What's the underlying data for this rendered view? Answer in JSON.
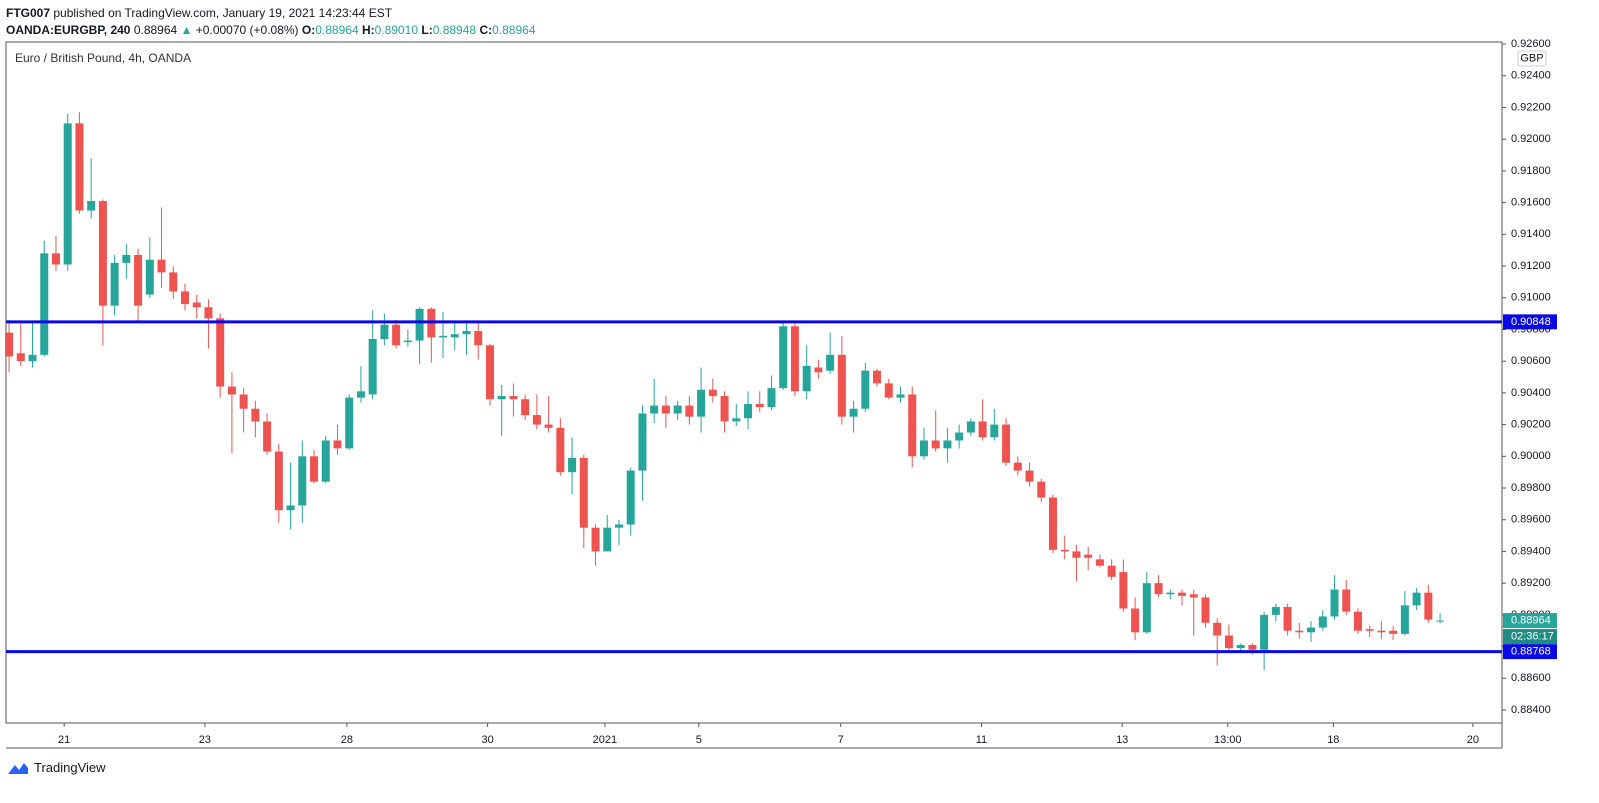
{
  "header": {
    "user": "FTG007",
    "published": "published on TradingView.com, January 19, 2021 14:23:44 EST",
    "symbol": "OANDA:EURGBP, 240",
    "last": "0.88964",
    "arrow": "▲",
    "change": "+0.00070 (+0.08%)",
    "ohlc": [
      {
        "key": "O:",
        "value": "0.88964"
      },
      {
        "key": "H:",
        "value": "0.89010"
      },
      {
        "key": "L:",
        "value": "0.88948"
      },
      {
        "key": "C:",
        "value": "0.88964"
      }
    ]
  },
  "footer": {
    "brand": "TradingView"
  },
  "chart_data": {
    "type": "candlestick",
    "title": "Euro / British Pound, 4h, OANDA",
    "currency": "GBP",
    "up_color": "#26a69a",
    "down_color": "#ef5350",
    "x": [
      0,
      1,
      2,
      3,
      4,
      5,
      6,
      7,
      8,
      9,
      10,
      11,
      12,
      13,
      14,
      15,
      16,
      17,
      18,
      19,
      20,
      21,
      22,
      23,
      24,
      25,
      26,
      27,
      28,
      29,
      30,
      31,
      32,
      33,
      34,
      35,
      36,
      37,
      38,
      39,
      40,
      41,
      42,
      43,
      44,
      45,
      46,
      47,
      48,
      49,
      50,
      51,
      52,
      53,
      54,
      55,
      56,
      57,
      58,
      59,
      60,
      61,
      62,
      63,
      64,
      65,
      66,
      67,
      68,
      69,
      70,
      71,
      72,
      73,
      74,
      75,
      76,
      77,
      78,
      79,
      80,
      81,
      82,
      83,
      84,
      85,
      86,
      87,
      88,
      89,
      90,
      91,
      92,
      93,
      94,
      95,
      96,
      97,
      98,
      99,
      100,
      101,
      102,
      103,
      104,
      105,
      106,
      107,
      108,
      109,
      110,
      111,
      112,
      113,
      114,
      115,
      116,
      117,
      118,
      119,
      120,
      121,
      122
    ],
    "open": [
      0.9078,
      0.9065,
      0.906,
      0.9064,
      0.9128,
      0.9121,
      0.921,
      0.9155,
      0.9161,
      0.9095,
      0.9122,
      0.9127,
      0.9102,
      0.9124,
      0.9116,
      0.9104,
      0.9097,
      0.9094,
      0.9087,
      0.9044,
      0.9039,
      0.903,
      0.9022,
      0.9003,
      0.8966,
      0.8969,
      0.9,
      0.8984,
      0.901,
      0.9005,
      0.9037,
      0.9039,
      0.9074,
      0.9083,
      0.9072,
      0.9073,
      0.9093,
      0.9075,
      0.9075,
      0.9077,
      0.9079,
      0.907,
      0.9036,
      0.9038,
      0.9036,
      0.9026,
      0.902,
      0.9018,
      0.899,
      0.8999,
      0.8955,
      0.894,
      0.8955,
      0.8957,
      0.8991,
      0.9027,
      0.9032,
      0.9027,
      0.9032,
      0.9025,
      0.9042,
      0.9038,
      0.9022,
      0.9024,
      0.9033,
      0.9031,
      0.9043,
      0.9082,
      0.9041,
      0.9056,
      0.9054,
      0.9064,
      0.9025,
      0.903,
      0.9054,
      0.9046,
      0.9037,
      0.9039,
      0.9,
      0.901,
      0.9005,
      0.901,
      0.9015,
      0.9022,
      0.9012,
      0.902,
      0.8996,
      0.8991,
      0.8984,
      0.8974,
      0.8941,
      0.894,
      0.8938,
      0.8935,
      0.8931,
      0.8927,
      0.8904,
      0.8889,
      0.892,
      0.8913,
      0.8914,
      0.8913,
      0.8911,
      0.8895,
      0.8887,
      0.8879,
      0.8881,
      0.8878,
      0.89,
      0.8905,
      0.889,
      0.8889,
      0.8892,
      0.8899,
      0.8916,
      0.8902,
      0.8891,
      0.889,
      0.889,
      0.8888,
      0.8906,
      0.8914,
      0.88964
    ],
    "high": [
      0.9086,
      0.9085,
      0.9085,
      0.9136,
      0.9139,
      0.9216,
      0.9217,
      0.9188,
      0.9162,
      0.9127,
      0.9134,
      0.9131,
      0.9138,
      0.9157,
      0.912,
      0.9109,
      0.9102,
      0.9099,
      0.909,
      0.9053,
      0.9043,
      0.9035,
      0.9027,
      0.9008,
      0.8996,
      0.901,
      0.9004,
      0.9013,
      0.902,
      0.9039,
      0.9057,
      0.9092,
      0.909,
      0.9086,
      0.908,
      0.9094,
      0.9094,
      0.9091,
      0.9085,
      0.9085,
      0.9085,
      0.9071,
      0.9045,
      0.9046,
      0.9039,
      0.9039,
      0.9038,
      0.9024,
      0.9012,
      0.9001,
      0.8957,
      0.8963,
      0.896,
      0.8993,
      0.9032,
      0.9049,
      0.9038,
      0.9035,
      0.9038,
      0.9056,
      0.9049,
      0.9041,
      0.9033,
      0.9041,
      0.9041,
      0.9051,
      0.9085,
      0.9085,
      0.907,
      0.9061,
      0.9078,
      0.9076,
      0.9035,
      0.9059,
      0.9055,
      0.9049,
      0.9044,
      0.9044,
      0.9018,
      0.9029,
      0.9018,
      0.902,
      0.9024,
      0.9036,
      0.903,
      0.9024,
      0.9,
      0.8996,
      0.8986,
      0.8976,
      0.895,
      0.8944,
      0.8943,
      0.8938,
      0.8935,
      0.8935,
      0.8911,
      0.8927,
      0.8925,
      0.8916,
      0.8916,
      0.8916,
      0.8913,
      0.8898,
      0.8894,
      0.8882,
      0.8882,
      0.8902,
      0.8907,
      0.8907,
      0.8895,
      0.8896,
      0.8903,
      0.8925,
      0.8922,
      0.8904,
      0.8893,
      0.8896,
      0.8893,
      0.8915,
      0.8917,
      0.8919,
      0.8901
    ],
    "low": [
      0.9053,
      0.9057,
      0.9056,
      0.9063,
      0.9117,
      0.9117,
      0.9153,
      0.915,
      0.907,
      0.9089,
      0.9112,
      0.9085,
      0.91,
      0.9106,
      0.9099,
      0.9092,
      0.9087,
      0.9068,
      0.9037,
      0.9002,
      0.9015,
      0.9012,
      0.9001,
      0.8958,
      0.8954,
      0.8958,
      0.8983,
      0.8983,
      0.9001,
      0.9004,
      0.9034,
      0.9036,
      0.907,
      0.9068,
      0.9069,
      0.9058,
      0.9059,
      0.9062,
      0.9067,
      0.9064,
      0.9061,
      0.9032,
      0.9013,
      0.9025,
      0.9023,
      0.9017,
      0.9015,
      0.8988,
      0.8976,
      0.8942,
      0.8931,
      0.894,
      0.8944,
      0.895,
      0.8972,
      0.9021,
      0.9018,
      0.9023,
      0.902,
      0.9015,
      0.9034,
      0.9015,
      0.9019,
      0.9017,
      0.9028,
      0.9029,
      0.9042,
      0.9038,
      0.9036,
      0.9049,
      0.9052,
      0.902,
      0.9015,
      0.9028,
      0.9044,
      0.9036,
      0.9034,
      0.8993,
      0.8998,
      0.9003,
      0.8996,
      0.9005,
      0.9013,
      0.901,
      0.901,
      0.8994,
      0.8988,
      0.8981,
      0.8971,
      0.8939,
      0.8935,
      0.8921,
      0.8928,
      0.893,
      0.8922,
      0.8902,
      0.8884,
      0.8888,
      0.8911,
      0.891,
      0.8906,
      0.8887,
      0.8892,
      0.8868,
      0.8877,
      0.8877,
      0.8875,
      0.8865,
      0.8896,
      0.8887,
      0.8885,
      0.8883,
      0.889,
      0.8897,
      0.89,
      0.8888,
      0.8886,
      0.8885,
      0.8884,
      0.8887,
      0.8903,
      0.8895,
      0.88948
    ],
    "close": [
      0.9063,
      0.906,
      0.9064,
      0.9128,
      0.9121,
      0.921,
      0.9155,
      0.9161,
      0.9095,
      0.9122,
      0.9127,
      0.9095,
      0.9124,
      0.9116,
      0.9104,
      0.9096,
      0.9094,
      0.9087,
      0.9044,
      0.9039,
      0.903,
      0.9022,
      0.9003,
      0.8966,
      0.8969,
      0.9,
      0.8984,
      0.901,
      0.9005,
      0.9037,
      0.9041,
      0.9074,
      0.9083,
      0.907,
      0.9073,
      0.9093,
      0.9075,
      0.9076,
      0.9077,
      0.9079,
      0.907,
      0.9036,
      0.9038,
      0.9036,
      0.9026,
      0.902,
      0.9018,
      0.899,
      0.8999,
      0.8955,
      0.894,
      0.8955,
      0.8957,
      0.8991,
      0.9027,
      0.9032,
      0.9027,
      0.9032,
      0.9025,
      0.9042,
      0.9038,
      0.9022,
      0.9024,
      0.9033,
      0.9031,
      0.9043,
      0.9082,
      0.9041,
      0.9057,
      0.9053,
      0.9064,
      0.9025,
      0.903,
      0.9054,
      0.9046,
      0.9037,
      0.9039,
      0.9,
      0.901,
      0.9005,
      0.901,
      0.9015,
      0.9022,
      0.9012,
      0.902,
      0.8996,
      0.8991,
      0.8984,
      0.8974,
      0.8941,
      0.894,
      0.8936,
      0.8936,
      0.8931,
      0.8924,
      0.8904,
      0.8889,
      0.892,
      0.8913,
      0.8914,
      0.8912,
      0.8911,
      0.8895,
      0.8887,
      0.8879,
      0.8881,
      0.8878,
      0.89,
      0.8905,
      0.889,
      0.8889,
      0.8892,
      0.8899,
      0.8916,
      0.8902,
      0.889,
      0.889,
      0.8889,
      0.8888,
      0.8906,
      0.8914,
      0.8897,
      0.88964
    ],
    "xlim": [
      -0.26,
      127.28
    ],
    "xticks": [
      {
        "value": 4.7,
        "label": "21"
      },
      {
        "value": 16.7,
        "label": "23"
      },
      {
        "value": 28.8,
        "label": "28"
      },
      {
        "value": 40.8,
        "label": "30"
      },
      {
        "value": 50.8,
        "label": "2021"
      },
      {
        "value": 58.8,
        "label": "5"
      },
      {
        "value": 70.9,
        "label": "7"
      },
      {
        "value": 82.9,
        "label": "11"
      },
      {
        "value": 94.9,
        "label": "13"
      },
      {
        "value": 103.9,
        "label": "13:00"
      },
      {
        "value": 112.9,
        "label": "18"
      },
      {
        "value": 124.8,
        "label": "20"
      }
    ],
    "ylim": [
      0.88318,
      0.92613
    ],
    "yticks": [
      {
        "value": 0.884,
        "label": "0.88400"
      },
      {
        "value": 0.886,
        "label": "0.88600"
      },
      {
        "value": 0.888,
        "label": "0.88800"
      },
      {
        "value": 0.89,
        "label": "0.89000"
      },
      {
        "value": 0.892,
        "label": "0.89200"
      },
      {
        "value": 0.894,
        "label": "0.89400"
      },
      {
        "value": 0.896,
        "label": "0.89600"
      },
      {
        "value": 0.898,
        "label": "0.89800"
      },
      {
        "value": 0.9,
        "label": "0.90000"
      },
      {
        "value": 0.902,
        "label": "0.90200"
      },
      {
        "value": 0.904,
        "label": "0.90400"
      },
      {
        "value": 0.906,
        "label": "0.90600"
      },
      {
        "value": 0.908,
        "label": "0.90800"
      },
      {
        "value": 0.91,
        "label": "0.91000"
      },
      {
        "value": 0.912,
        "label": "0.91200"
      },
      {
        "value": 0.914,
        "label": "0.91400"
      },
      {
        "value": 0.916,
        "label": "0.91600"
      },
      {
        "value": 0.918,
        "label": "0.91800"
      },
      {
        "value": 0.92,
        "label": "0.92000"
      },
      {
        "value": 0.922,
        "label": "0.92200"
      },
      {
        "value": 0.924,
        "label": "0.92400"
      },
      {
        "value": 0.926,
        "label": "0.92600"
      }
    ],
    "hlines": [
      {
        "value": 0.90848,
        "color": "#0a0ae8"
      },
      {
        "value": 0.88768,
        "color": "#0a0ae8"
      }
    ],
    "last_price": 0.88964,
    "countdown": "02:36:17",
    "grid": false
  }
}
